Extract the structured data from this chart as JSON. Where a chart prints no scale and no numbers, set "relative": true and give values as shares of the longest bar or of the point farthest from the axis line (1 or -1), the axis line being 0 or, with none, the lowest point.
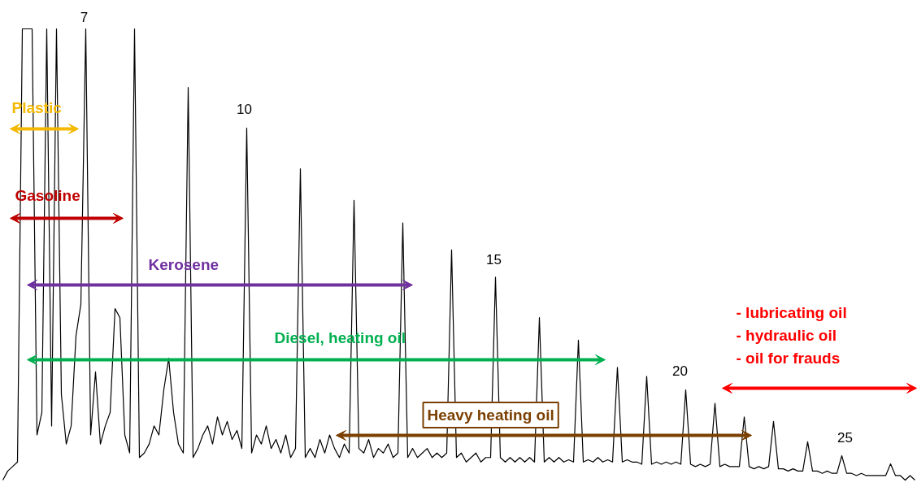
{
  "chart_data": {
    "type": "line",
    "relative": true,
    "tick_labels": false,
    "grid": false,
    "marker": "none",
    "line_style": "solid",
    "categories": [
      null,
      null,
      null,
      null,
      null,
      null,
      null,
      null,
      null,
      null,
      null,
      null,
      null,
      null,
      null,
      null,
      null,
      null,
      null,
      null,
      null,
      null,
      null,
      null,
      null,
      null,
      null,
      null,
      null,
      null,
      null,
      null,
      null,
      null,
      null,
      null,
      null,
      null,
      null,
      null,
      null,
      null,
      null,
      null,
      null,
      null,
      null,
      null,
      null,
      null,
      null,
      null,
      null,
      null,
      null,
      null,
      null,
      null,
      null,
      null,
      null,
      null,
      null,
      null,
      null,
      null,
      null,
      null,
      null,
      null,
      null,
      null,
      null,
      null,
      null,
      null,
      null,
      null,
      null,
      null,
      null,
      null,
      null,
      null,
      null,
      null,
      null,
      null,
      null,
      null,
      null,
      null,
      null,
      null,
      null,
      null,
      null,
      null,
      null,
      null,
      null,
      null,
      null,
      null,
      null,
      null,
      null,
      null,
      null,
      null,
      null,
      null,
      null,
      null,
      null,
      null,
      null,
      null,
      null,
      null,
      null,
      null,
      null,
      null,
      null,
      null,
      null,
      null,
      null,
      null,
      null,
      null,
      null,
      null,
      null,
      null,
      null,
      null,
      null,
      null,
      null,
      null,
      null,
      null,
      null,
      null,
      null,
      null,
      null,
      null,
      null,
      null,
      null,
      null,
      null,
      null,
      null,
      null,
      null,
      null,
      null,
      null,
      null,
      null,
      null,
      null,
      null,
      null,
      null,
      null,
      null,
      null,
      null,
      null,
      null,
      null,
      null,
      null,
      null,
      null,
      null,
      null,
      null,
      null,
      null,
      null,
      null,
      null
    ],
    "series": [
      {
        "color": "#000000",
        "values": [
          0,
          0.02,
          0.03,
          0.04,
          1.0,
          1.0,
          1.0,
          0.1,
          0.15,
          1.0,
          0.12,
          1.0,
          0.19,
          0.08,
          0.12,
          0.32,
          0.39,
          1.0,
          0.1,
          0.24,
          0.08,
          0.12,
          0.15,
          0.38,
          0.36,
          0.1,
          0.06,
          1.0,
          0.05,
          0.06,
          0.08,
          0.12,
          0.1,
          0.2,
          0.27,
          0.15,
          0.08,
          0.06,
          0.87,
          0.05,
          0.07,
          0.1,
          0.12,
          0.08,
          0.14,
          0.1,
          0.13,
          0.09,
          0.11,
          0.07,
          0.78,
          0.06,
          0.1,
          0.08,
          0.12,
          0.07,
          0.09,
          0.06,
          0.1,
          0.05,
          0.07,
          0.69,
          0.05,
          0.07,
          0.05,
          0.09,
          0.06,
          0.1,
          0.07,
          0.05,
          0.08,
          0.06,
          0.62,
          0.07,
          0.06,
          0.09,
          0.05,
          0.07,
          0.06,
          0.08,
          0.05,
          0.06,
          0.57,
          0.05,
          0.07,
          0.05,
          0.06,
          0.07,
          0.05,
          0.06,
          0.05,
          0.06,
          0.51,
          0.05,
          0.06,
          0.04,
          0.05,
          0.06,
          0.04,
          0.05,
          0.05,
          0.45,
          0.05,
          0.04,
          0.05,
          0.04,
          0.05,
          0.04,
          0.05,
          0.04,
          0.36,
          0.04,
          0.05,
          0.04,
          0.05,
          0.04,
          0.045,
          0.04,
          0.31,
          0.04,
          0.045,
          0.04,
          0.05,
          0.04,
          0.045,
          0.04,
          0.25,
          0.04,
          0.045,
          0.04,
          0.04,
          0.035,
          0.23,
          0.035,
          0.04,
          0.035,
          0.04,
          0.035,
          0.04,
          0.035,
          0.2,
          0.035,
          0.03,
          0.035,
          0.03,
          0.035,
          0.17,
          0.03,
          0.035,
          0.03,
          0.03,
          0.03,
          0.14,
          0.03,
          0.025,
          0.03,
          0.025,
          0.03,
          0.13,
          0.025,
          0.025,
          0.02,
          0.025,
          0.02,
          0.02,
          0.085,
          0.02,
          0.02,
          0.015,
          0.02,
          0.015,
          0.015,
          0.054,
          0.015,
          0.015,
          0.01,
          0.015,
          0.01,
          0.01,
          0.01,
          0.01,
          0.01,
          0.036,
          0.01,
          0.01,
          0,
          0.01,
          0
        ]
      }
    ],
    "annotations": [
      "7",
      "10",
      "15",
      "20",
      "25",
      "Plastic",
      "Gasoline",
      "Kerosene",
      "Diesel, heating oil",
      "Heavy heating oil",
      "- lubricating oil\n- hydraulic oil\n- oil for frauds"
    ]
  }
}
